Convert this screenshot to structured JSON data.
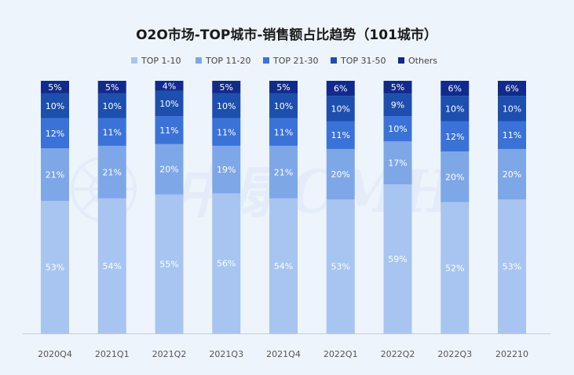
{
  "chart_data": {
    "type": "bar",
    "stacked": true,
    "percent": true,
    "title": "O2O市场-TOP城市-销售额占比趋势（101城市）",
    "watermark": "中康CMH",
    "legend_position": "top",
    "grid": false,
    "ylim": [
      0,
      100
    ],
    "categories": [
      "2020Q4",
      "2021Q1",
      "2021Q2",
      "2021Q3",
      "2021Q4",
      "2022Q1",
      "2022Q2",
      "2022Q3",
      "202210"
    ],
    "series": [
      {
        "name": "TOP 1-10",
        "color": "#a7c5f0",
        "label_color": "#ffffff",
        "values": [
          53,
          54,
          55,
          56,
          54,
          53,
          59,
          52,
          53
        ]
      },
      {
        "name": "TOP 11-20",
        "color": "#7ea7e8",
        "label_color": "#ffffff",
        "values": [
          21,
          21,
          20,
          19,
          21,
          20,
          17,
          20,
          20
        ]
      },
      {
        "name": "TOP 21-30",
        "color": "#3a72d8",
        "label_color": "#ffffff",
        "values": [
          12,
          11,
          11,
          11,
          11,
          11,
          10,
          12,
          11
        ]
      },
      {
        "name": "TOP 31-50",
        "color": "#1d4fae",
        "label_color": "#ffffff",
        "values": [
          10,
          10,
          10,
          10,
          10,
          10,
          9,
          10,
          10
        ]
      },
      {
        "name": "Others",
        "color": "#122a8c",
        "label_color": "#ffffff",
        "values": [
          5,
          5,
          4,
          5,
          5,
          6,
          5,
          6,
          6
        ]
      }
    ]
  }
}
